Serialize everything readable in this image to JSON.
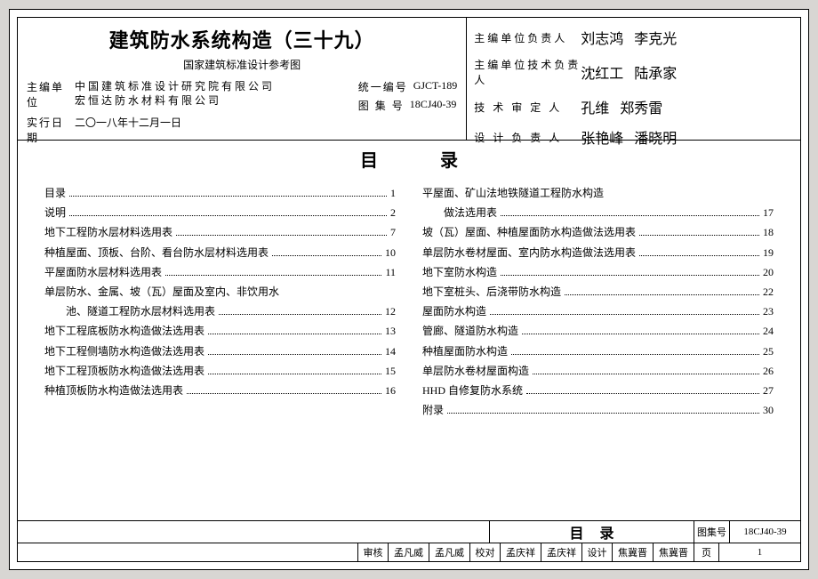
{
  "header": {
    "title": "建筑防水系统构造（三十九）",
    "subtitle": "国家建筑标准设计参考图",
    "org_label": "主编单位",
    "orgs": [
      "中国建筑标准设计研究院有限公司",
      "宏恒达防水材料有限公司"
    ],
    "date_label": "实行日期",
    "date_value": "二〇一八年十二月一日",
    "code1_label": "统一编号",
    "code1_value": "GJCT-189",
    "code2_label": "图 集 号",
    "code2_value": "18CJ40-39",
    "sign_rows": [
      {
        "label": "主编单位负责人"
      },
      {
        "label": "主编单位技术负责人"
      },
      {
        "label": "技 术 审 定 人"
      },
      {
        "label": "设 计 负 责 人"
      }
    ]
  },
  "toc_heading": "目录",
  "toc_left": [
    {
      "text": "目录",
      "page": "1",
      "indent": false
    },
    {
      "text": "说明",
      "page": "2",
      "indent": false
    },
    {
      "text": "地下工程防水层材料选用表",
      "page": "7",
      "indent": false
    },
    {
      "text": "种植屋面、顶板、台阶、看台防水层材料选用表",
      "page": "10",
      "indent": false
    },
    {
      "text": "平屋面防水层材料选用表",
      "page": "11",
      "indent": false
    },
    {
      "text": "单层防水、金属、坡（瓦）屋面及室内、非饮用水",
      "page": "",
      "indent": false
    },
    {
      "text": "池、隧道工程防水层材料选用表",
      "page": "12",
      "indent": true
    },
    {
      "text": "地下工程底板防水构造做法选用表",
      "page": "13",
      "indent": false
    },
    {
      "text": "地下工程侧墙防水构造做法选用表",
      "page": "14",
      "indent": false
    },
    {
      "text": "地下工程顶板防水构造做法选用表",
      "page": "15",
      "indent": false
    },
    {
      "text": "种植顶板防水构造做法选用表",
      "page": "16",
      "indent": false
    }
  ],
  "toc_right": [
    {
      "text": "平屋面、矿山法地铁隧道工程防水构造",
      "page": "",
      "indent": false
    },
    {
      "text": "做法选用表",
      "page": "17",
      "indent": true
    },
    {
      "text": "坡（瓦）屋面、种植屋面防水构造做法选用表",
      "page": "18",
      "indent": false
    },
    {
      "text": "单层防水卷材屋面、室内防水构造做法选用表",
      "page": "19",
      "indent": false
    },
    {
      "text": "地下室防水构造",
      "page": "20",
      "indent": false
    },
    {
      "text": "地下室桩头、后浇带防水构造",
      "page": "22",
      "indent": false
    },
    {
      "text": "屋面防水构造",
      "page": "23",
      "indent": false
    },
    {
      "text": "管廊、隧道防水构造",
      "page": "24",
      "indent": false
    },
    {
      "text": "种植屋面防水构造",
      "page": "25",
      "indent": false
    },
    {
      "text": "单层防水卷材屋面构造",
      "page": "26",
      "indent": false
    },
    {
      "text": "HHD 自修复防水系统",
      "page": "27",
      "indent": false
    },
    {
      "text": "附录",
      "page": "30",
      "indent": false
    }
  ],
  "footer": {
    "mulu": "目录",
    "atlas_label": "图集号",
    "atlas_value": "18CJ40-39",
    "cells": [
      {
        "l": "审核",
        "v": "孟凡威"
      },
      {
        "l": "校对",
        "v": "孟庆祥"
      },
      {
        "l": "设计",
        "v": "焦冀晋"
      }
    ],
    "page_label": "页",
    "page_value": "1"
  }
}
